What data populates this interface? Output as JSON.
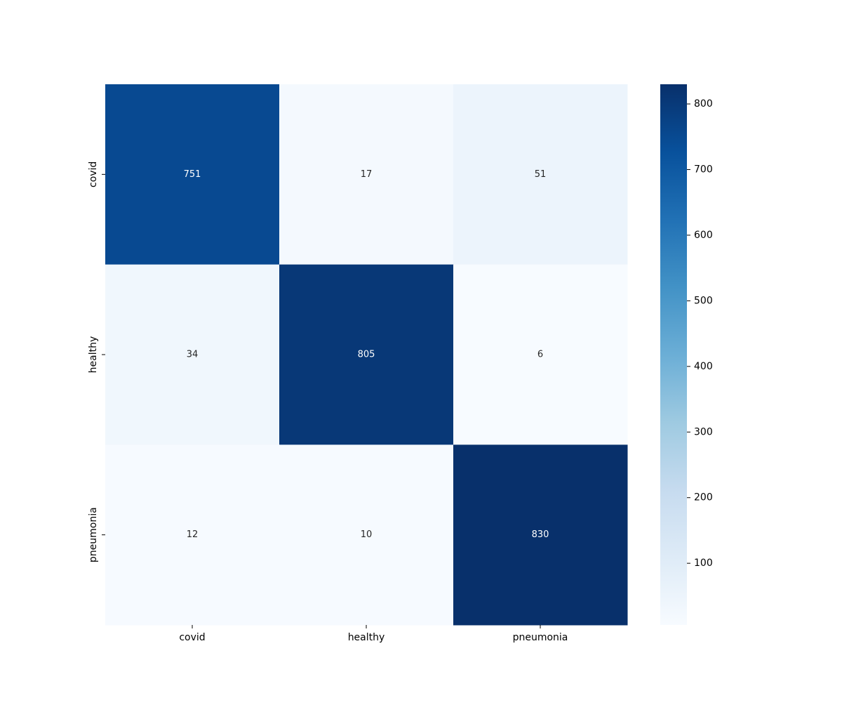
{
  "chart_data": {
    "type": "heatmap",
    "title": "",
    "xlabel": "",
    "ylabel": "",
    "x_categories": [
      "covid",
      "healthy",
      "pneumonia"
    ],
    "y_categories": [
      "covid",
      "healthy",
      "pneumonia"
    ],
    "values": [
      [
        751,
        17,
        51
      ],
      [
        34,
        805,
        6
      ],
      [
        12,
        10,
        830
      ]
    ],
    "colormap": "Blues",
    "colorbar": {
      "range": [
        6,
        830
      ],
      "ticks": [
        100,
        200,
        300,
        400,
        500,
        600,
        700,
        800
      ]
    },
    "annotations": true,
    "grid": false
  }
}
